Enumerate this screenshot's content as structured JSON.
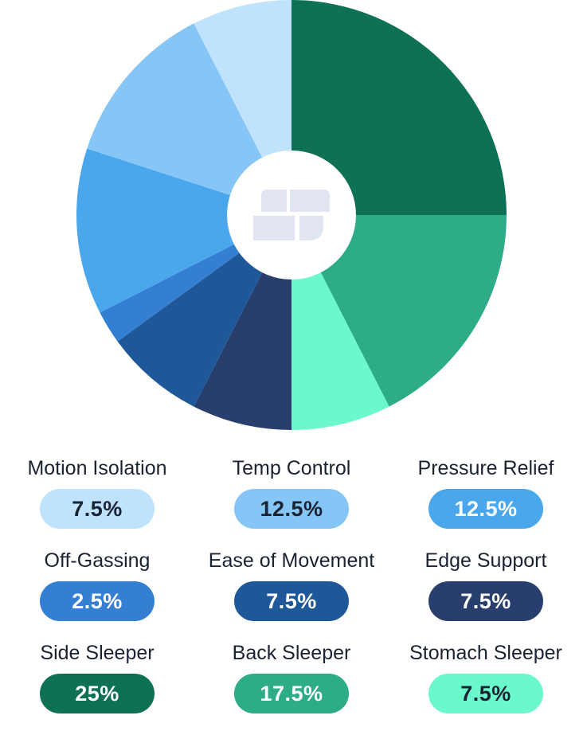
{
  "chart_data": {
    "type": "pie",
    "style": "donut",
    "start": "top",
    "direction": "clockwise",
    "center_icon": "brand-logo-icon",
    "center_icon_color": "#e1e5f2",
    "slices": [
      {
        "label": "Side Sleeper",
        "value": 25,
        "display": "25%",
        "color": "#0e7155",
        "text_color": "#ffffff"
      },
      {
        "label": "Back Sleeper",
        "value": 17.5,
        "display": "17.5%",
        "color": "#2eab87",
        "text_color": "#ffffff"
      },
      {
        "label": "Stomach Sleeper",
        "value": 7.5,
        "display": "7.5%",
        "color": "#6cf8cd",
        "text_color": "#1b2333"
      },
      {
        "label": "Edge Support",
        "value": 7.5,
        "display": "7.5%",
        "color": "#283f6d",
        "text_color": "#ffffff"
      },
      {
        "label": "Ease of Movement",
        "value": 7.5,
        "display": "7.5%",
        "color": "#1f5898",
        "text_color": "#ffffff"
      },
      {
        "label": "Off-Gassing",
        "value": 2.5,
        "display": "2.5%",
        "color": "#347fd2",
        "text_color": "#ffffff"
      },
      {
        "label": "Pressure Relief",
        "value": 12.5,
        "display": "12.5%",
        "color": "#4aa7ec",
        "text_color": "#ffffff"
      },
      {
        "label": "Temp Control",
        "value": 12.5,
        "display": "12.5%",
        "color": "#86c6f6",
        "text_color": "#1b2333"
      },
      {
        "label": "Motion Isolation",
        "value": 7.5,
        "display": "7.5%",
        "color": "#bfe2fd",
        "text_color": "#1b2333"
      }
    ],
    "legend_order": [
      8,
      7,
      6,
      5,
      4,
      3,
      0,
      1,
      2
    ]
  }
}
